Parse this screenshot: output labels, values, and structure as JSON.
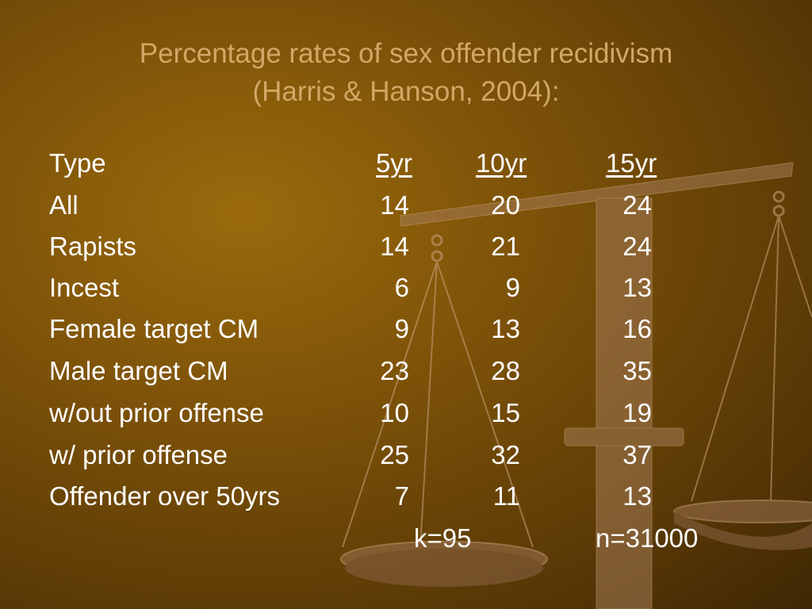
{
  "title": {
    "line1": "Percentage rates of sex offender recidivism",
    "line2": "(Harris & Hanson, 2004):"
  },
  "table": {
    "headers": {
      "type": "Type",
      "yr5": "5yr",
      "yr10": "10yr",
      "yr15": "15yr"
    },
    "rows": [
      {
        "type": "All",
        "yr5": "14",
        "yr10": "20",
        "yr15": "24"
      },
      {
        "type": "Rapists",
        "yr5": "14",
        "yr10": "21",
        "yr15": "24"
      },
      {
        "type": "Incest",
        "yr5": "6",
        "yr10": "9",
        "yr15": "13"
      },
      {
        "type": "Female target CM",
        "yr5": "9",
        "yr10": "13",
        "yr15": "16"
      },
      {
        "type": "Male target CM",
        "yr5": "23",
        "yr10": "28",
        "yr15": "35"
      },
      {
        "type": "w/out prior offense",
        "yr5": "10",
        "yr10": "15",
        "yr15": "19"
      },
      {
        "type": "w/ prior offense",
        "yr5": "25",
        "yr10": "32",
        "yr15": "37"
      },
      {
        "type": "Offender over 50yrs",
        "yr5": "7",
        "yr10": "11",
        "yr15": "13"
      }
    ],
    "footer": {
      "k": "k=95",
      "n": "n=31000"
    }
  },
  "colors": {
    "title": "#d2a866",
    "text": "#ffffff",
    "background": "#7e5309",
    "scale": "#b08458"
  }
}
